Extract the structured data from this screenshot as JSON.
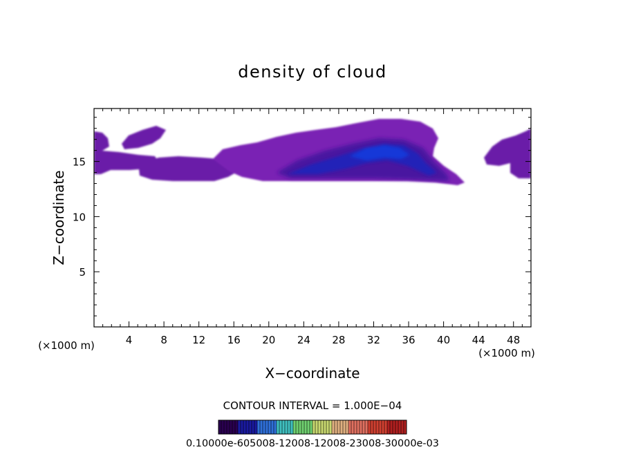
{
  "chart_data": {
    "type": "heatmap",
    "title": "density of cloud",
    "xlabel": "X−coordinate",
    "ylabel": "Z−coordinate",
    "x_unit_left": "(×1000 m)",
    "x_unit_right": "(×1000 m)",
    "xlim": [
      0,
      50
    ],
    "ylim": [
      0,
      19.8
    ],
    "x_ticks": [
      4,
      8,
      12,
      16,
      20,
      24,
      28,
      32,
      36,
      40,
      44,
      48
    ],
    "y_ticks": [
      5,
      10,
      15
    ],
    "grid": false,
    "contour_interval": "CONTOUR INTERVAL = 1.000E−04",
    "colorbar": {
      "min": 0.0001,
      "max": 0.0035,
      "label_text": "0.10000e-605008-12008-12008-23008-30000e-03",
      "colors": [
        "#2a0050",
        "#1a1aa0",
        "#2f6fd8",
        "#40c0c0",
        "#70d070",
        "#c8d870",
        "#e0b080",
        "#e07060",
        "#d04030",
        "#b02020"
      ]
    },
    "regions": [
      {
        "name": "left-edge-layer",
        "x_range": [
          0,
          2
        ],
        "z_range": [
          13.8,
          17.8
        ],
        "level": "low"
      },
      {
        "name": "left-upper-band",
        "x_range": [
          3,
          9
        ],
        "z_range": [
          15.5,
          18
        ],
        "level": "low"
      },
      {
        "name": "left-layer",
        "x_range": [
          0,
          14
        ],
        "z_range": [
          14.3,
          16
        ],
        "level": "low"
      },
      {
        "name": "mid-left-layer",
        "x_range": [
          6,
          19
        ],
        "z_range": [
          13.4,
          15.5
        ],
        "level": "low"
      },
      {
        "name": "main-cloud-body",
        "x_range": [
          15,
          42
        ],
        "z_range": [
          13.2,
          18.5
        ],
        "level": "medium"
      },
      {
        "name": "main-cloud-core",
        "x_range": [
          24,
          39
        ],
        "z_range": [
          13.8,
          17
        ],
        "level": "high"
      },
      {
        "name": "right-edge-layer",
        "x_range": [
          45,
          50
        ],
        "z_range": [
          13.5,
          18
        ],
        "level": "low"
      }
    ]
  }
}
